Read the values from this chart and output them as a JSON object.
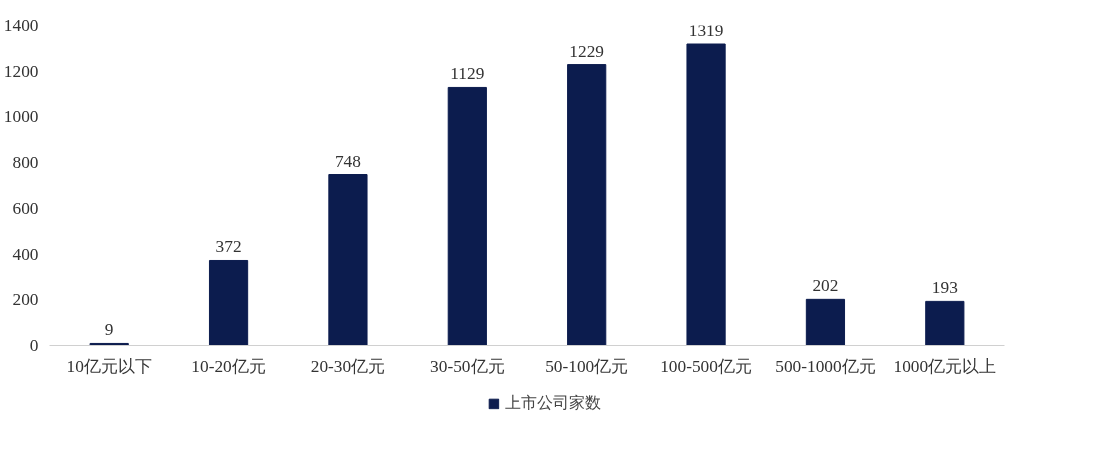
{
  "chart_data": {
    "type": "bar",
    "categories": [
      "10亿元以下",
      "10-20亿元",
      "20-30亿元",
      "30-50亿元",
      "50-100亿元",
      "100-500亿元",
      "500-1000亿元",
      "1000亿元以上"
    ],
    "series": [
      {
        "name": "上市公司家数",
        "color": "#0c1c4e",
        "values": [
          9,
          372,
          748,
          1129,
          1229,
          1319,
          202,
          193
        ]
      }
    ],
    "ylim": [
      0,
      1400
    ],
    "yticks": [
      0,
      200,
      400,
      600,
      800,
      1000,
      1200,
      1400
    ],
    "grid": false,
    "legend": "bottom",
    "data_labels": true
  }
}
